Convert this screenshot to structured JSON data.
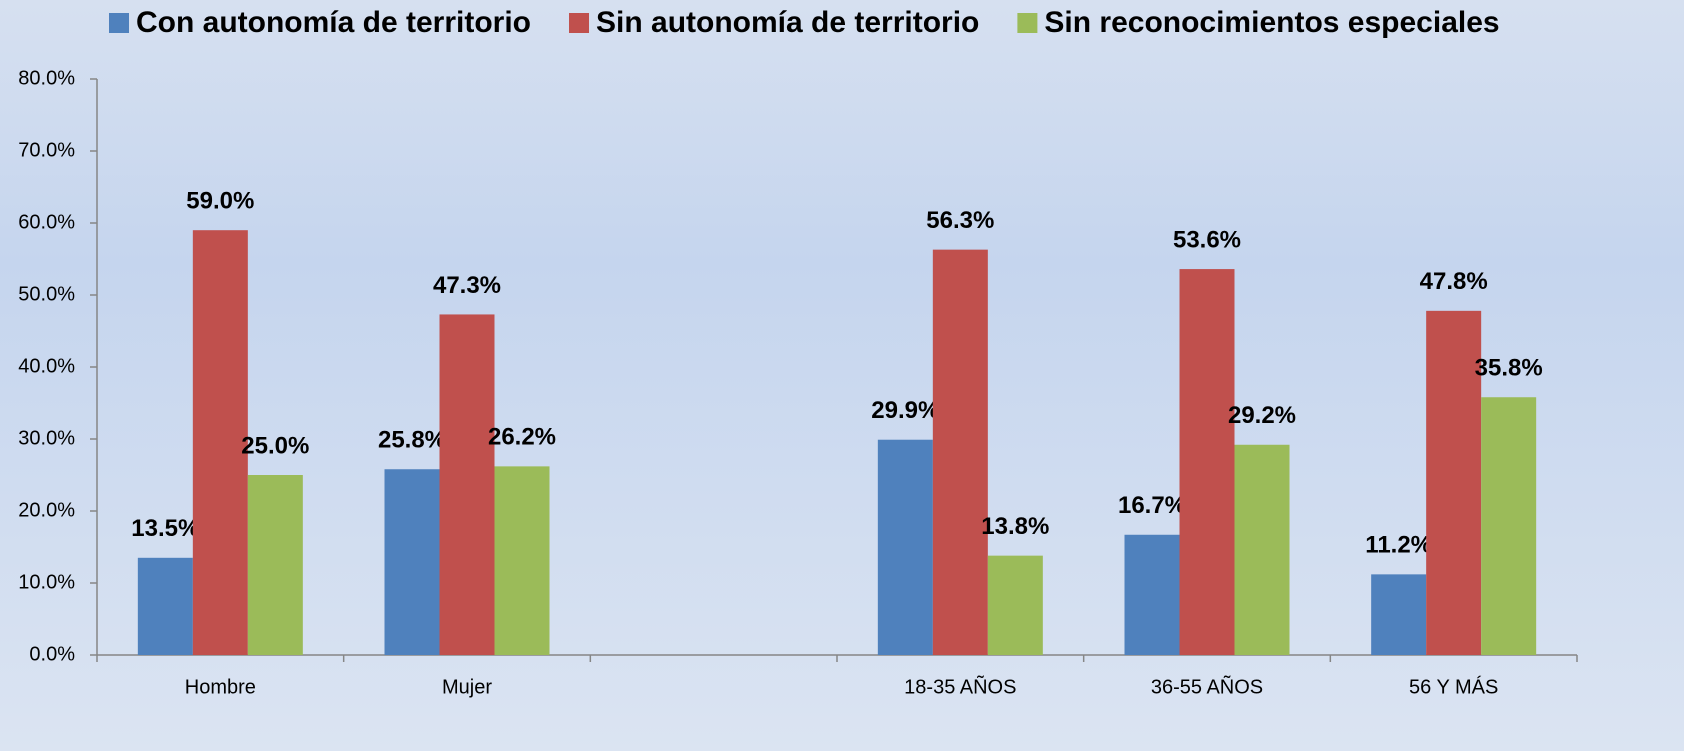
{
  "chart_data": {
    "type": "bar",
    "categories": [
      "Hombre",
      "Mujer",
      null,
      "18-35 AÑOS",
      "36-55 AÑOS",
      "56 Y MÁS"
    ],
    "series": [
      {
        "name": "Con autonomía de territorio",
        "color": "#4f81bd",
        "values": [
          13.5,
          25.8,
          null,
          29.9,
          16.7,
          11.2
        ],
        "value_labels": [
          "13.5%",
          "25.8%",
          null,
          "29.9%",
          "16.7%",
          "11.2%"
        ]
      },
      {
        "name": "Sin autonomía de territorio",
        "color": "#c0504d",
        "values": [
          59.0,
          47.3,
          null,
          56.3,
          53.6,
          47.8
        ],
        "value_labels": [
          "59.0%",
          "47.3%",
          null,
          "56.3%",
          "53.6%",
          "47.8%"
        ]
      },
      {
        "name": "Sin reconocimientos especiales",
        "color": "#9bbb59",
        "values": [
          25.0,
          26.2,
          null,
          13.8,
          29.2,
          35.8
        ],
        "value_labels": [
          "25.0%",
          "26.2%",
          null,
          "13.8%",
          "29.2%",
          "35.8%"
        ]
      }
    ],
    "ylim": [
      0,
      80
    ],
    "yticks": [
      {
        "value": 0,
        "label": "0.0%"
      },
      {
        "value": 10,
        "label": "10.0%"
      },
      {
        "value": 20,
        "label": "20.0%"
      },
      {
        "value": 30,
        "label": "30.0%"
      },
      {
        "value": 40,
        "label": "40.0%"
      },
      {
        "value": 50,
        "label": "50.0%"
      },
      {
        "value": 60,
        "label": "60.0%"
      },
      {
        "value": 70,
        "label": "70.0%"
      },
      {
        "value": 80,
        "label": "80.0%"
      }
    ],
    "legend": "top"
  }
}
